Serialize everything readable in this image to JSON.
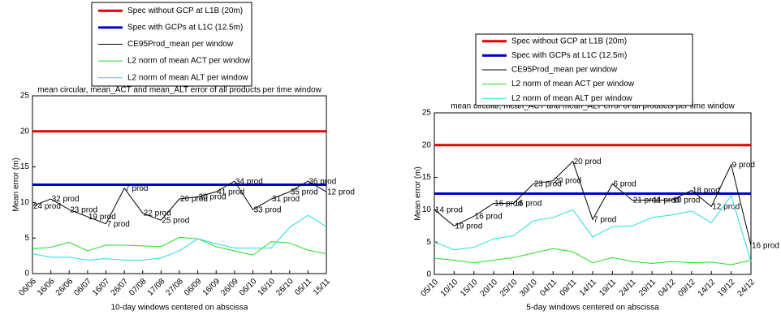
{
  "chart_data": [
    {
      "type": "line",
      "title": "mean circular, mean_ACT and mean_ALT error of all products per time window",
      "xlabel": "10-day windows centered on abscissa",
      "ylabel": "Mean error (m)",
      "categories": [
        "06/06",
        "16/06",
        "26/06",
        "06/07",
        "16/07",
        "26/07",
        "07/08",
        "17/08",
        "27/08",
        "06/09",
        "16/09",
        "26/09",
        "06/10",
        "16/10",
        "26/10",
        "05/11",
        "15/11"
      ],
      "ylim": [
        0,
        25
      ],
      "yticks": [
        0,
        5,
        10,
        15,
        20,
        25
      ],
      "series": [
        {
          "name": "Spec without GCP at L1B (20m)",
          "color": "#e00000",
          "value": 20
        },
        {
          "name": "Spec with GCPs at L1C (12.5m)",
          "color": "#0000cc",
          "value": 12.5
        },
        {
          "name": "CE95Prod_mean per window",
          "color": "#000000",
          "values": [
            9.5,
            10.5,
            9,
            8,
            7,
            12,
            8.5,
            7.5,
            10.5,
            10.8,
            11.5,
            13,
            9,
            10.5,
            11.5,
            13,
            11.5
          ],
          "point_labels": [
            "24 prod",
            "32 prod",
            "23 prod",
            "19 prod",
            "7 prod",
            "7 prod",
            "22 prod",
            "25 prod",
            "26 prod",
            "30 prod",
            "41 prod",
            "34 prod",
            "33 prod",
            "31 prod",
            "35 prod",
            "36 prod",
            "12 prod"
          ]
        },
        {
          "name": "L2 norm of mean ACT per window",
          "color": "#22dd22",
          "values": [
            3.5,
            3.7,
            4.4,
            3.2,
            4,
            4,
            3.9,
            3.8,
            5.1,
            4.9,
            3.8,
            3.2,
            2.6,
            4.5,
            4.3,
            3.3,
            2.8
          ]
        },
        {
          "name": "L2 norm of mean ALT per window",
          "color": "#22dddd",
          "values": [
            2.8,
            2.3,
            2.3,
            1.9,
            2.1,
            1.9,
            1.9,
            2.2,
            3.2,
            4.9,
            4.2,
            3.6,
            3.6,
            3.6,
            6.5,
            8.2,
            6.6
          ]
        }
      ]
    },
    {
      "type": "line",
      "title": "mean circular, mean_ACT and mean_ALT error of all products per time window",
      "xlabel": "5-day windows centered on abscissa",
      "ylabel": "Mean error (m)",
      "categories": [
        "05/10",
        "10/10",
        "15/10",
        "20/10",
        "25/10",
        "30/10",
        "04/11",
        "09/11",
        "14/11",
        "19/11",
        "24/11",
        "29/11",
        "04/12",
        "09/12",
        "14/12",
        "19/12",
        "24/12"
      ],
      "ylim": [
        0,
        25
      ],
      "yticks": [
        0,
        5,
        10,
        15,
        20,
        25
      ],
      "series": [
        {
          "name": "Spec without GCP at L1B (20m)",
          "color": "#e00000",
          "value": 20
        },
        {
          "name": "Spec with GCPs at L1C (12.5m)",
          "color": "#0000cc",
          "value": 12.5
        },
        {
          "name": "CE95Prod_mean per window",
          "color": "#000000",
          "values": [
            10,
            7.5,
            9,
            11,
            11,
            14,
            14.5,
            17.5,
            8.5,
            14,
            11.5,
            11.5,
            11.5,
            13,
            10.5,
            17,
            4.5
          ],
          "point_labels": [
            "14 prod",
            "19 prod",
            "16 prod",
            "16 prod",
            "16 prod",
            "23 prod",
            "20 prod",
            "20 prod",
            "7 prod",
            "6 prod",
            "21 prod",
            "11 prod",
            "10 prod",
            "18 prod",
            "12 prod",
            "9 prod",
            "16 prod"
          ]
        },
        {
          "name": "L2 norm of mean ACT per window",
          "color": "#22dd22",
          "values": [
            2.5,
            2.2,
            1.8,
            2.2,
            2.6,
            3.3,
            4,
            3.5,
            1.8,
            2.6,
            2,
            1.7,
            2,
            1.8,
            1.9,
            1.5,
            2.2
          ]
        },
        {
          "name": "L2 norm of mean ALT per window",
          "color": "#22dddd",
          "values": [
            5,
            3.8,
            4.2,
            5.5,
            6,
            8.3,
            8.8,
            10,
            5.8,
            7.4,
            7.5,
            8.8,
            9.2,
            9.8,
            8,
            12.2,
            2
          ]
        }
      ]
    }
  ]
}
